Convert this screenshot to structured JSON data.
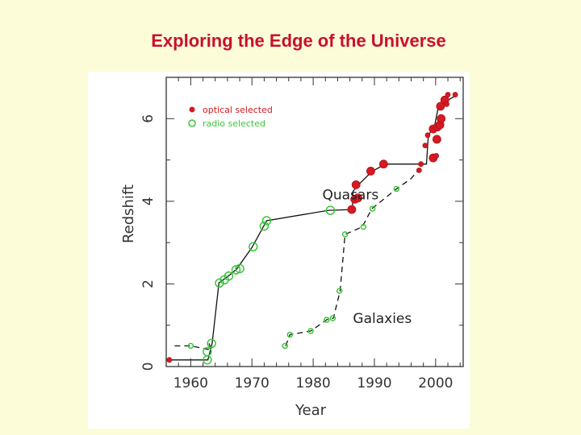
{
  "title": "Exploring the Edge of the Universe",
  "colors": {
    "title": "#c8102e",
    "background": "#fcfcd8",
    "optical": "#d51a22",
    "radio": "#3cc43c"
  },
  "chart_data": {
    "type": "scatter",
    "title": "",
    "xlabel": "Year",
    "ylabel": "Redshift",
    "xlim": [
      1956,
      2004.5
    ],
    "ylim": [
      0,
      7
    ],
    "x_ticks": [
      1960,
      1970,
      1980,
      1990,
      2000
    ],
    "x_tick_labels": [
      "1960",
      "1970",
      "1980",
      "1990",
      "2000"
    ],
    "y_ticks": [
      0,
      2,
      4,
      6
    ],
    "y_tick_labels": [
      "0",
      "2",
      "4",
      "6"
    ],
    "legend": {
      "position": "top-left",
      "entries": [
        {
          "label": "optical selected",
          "marker": "filled-circle",
          "color": "#d51a22"
        },
        {
          "label": "radio selected",
          "marker": "open-circle",
          "color": "#3cc43c"
        }
      ]
    },
    "annotations": [
      {
        "text": "Quasars",
        "x": 1981.5,
        "y": 4.05
      },
      {
        "text": "Galaxies",
        "x": 1986.5,
        "y": 1.05
      }
    ],
    "series": [
      {
        "name": "Quasars",
        "line_style": "solid",
        "line": [
          [
            1956,
            0.16
          ],
          [
            1962.8,
            0.16
          ],
          [
            1963.5,
            0.56
          ],
          [
            1964.6,
            2.02
          ],
          [
            1966.3,
            2.21
          ],
          [
            1967.5,
            2.36
          ],
          [
            1970,
            2.88
          ],
          [
            1972,
            3.42
          ],
          [
            1972.4,
            3.53
          ],
          [
            1982.5,
            3.78
          ],
          [
            1986.4,
            3.8
          ],
          [
            1986.5,
            4.24
          ],
          [
            1987.6,
            4.43
          ],
          [
            1989.6,
            4.72
          ],
          [
            1991.8,
            4.9
          ],
          [
            1998.5,
            4.9
          ],
          [
            1998.8,
            5.6
          ],
          [
            1999.8,
            5.8
          ],
          [
            2000.4,
            6.25
          ],
          [
            2001.7,
            6.42
          ],
          [
            2003.2,
            6.55
          ]
        ],
        "points": [
          {
            "x": 1956.5,
            "y": 0.16,
            "type": "optical",
            "size": "small"
          },
          {
            "x": 1962.7,
            "y": 0.16,
            "type": "radio",
            "size": "large"
          },
          {
            "x": 1962.7,
            "y": 0.36,
            "type": "radio",
            "size": "large"
          },
          {
            "x": 1963.4,
            "y": 0.56,
            "type": "radio",
            "size": "large"
          },
          {
            "x": 1964.7,
            "y": 2.02,
            "type": "radio",
            "size": "large"
          },
          {
            "x": 1965.5,
            "y": 2.1,
            "type": "radio",
            "size": "large"
          },
          {
            "x": 1966.2,
            "y": 2.19,
            "type": "radio",
            "size": "large"
          },
          {
            "x": 1967.4,
            "y": 2.34,
            "type": "radio",
            "size": "large"
          },
          {
            "x": 1968,
            "y": 2.37,
            "type": "radio",
            "size": "large"
          },
          {
            "x": 1970.2,
            "y": 2.9,
            "type": "radio",
            "size": "large"
          },
          {
            "x": 1972,
            "y": 3.4,
            "type": "radio",
            "size": "large"
          },
          {
            "x": 1972.4,
            "y": 3.53,
            "type": "radio",
            "size": "large"
          },
          {
            "x": 1982.8,
            "y": 3.78,
            "type": "radio",
            "size": "large"
          },
          {
            "x": 1986.3,
            "y": 3.8,
            "type": "optical",
            "size": "large"
          },
          {
            "x": 1986.8,
            "y": 4.05,
            "type": "optical",
            "size": "large"
          },
          {
            "x": 1987.3,
            "y": 4.08,
            "type": "optical",
            "size": "large"
          },
          {
            "x": 1987,
            "y": 4.4,
            "type": "optical",
            "size": "large"
          },
          {
            "x": 1989.4,
            "y": 4.73,
            "type": "optical",
            "size": "large"
          },
          {
            "x": 1991.5,
            "y": 4.9,
            "type": "optical",
            "size": "large"
          },
          {
            "x": 1997.3,
            "y": 4.75,
            "type": "optical",
            "size": "small"
          },
          {
            "x": 1997.6,
            "y": 4.9,
            "type": "optical",
            "size": "small"
          },
          {
            "x": 1998.3,
            "y": 5.35,
            "type": "optical",
            "size": "small"
          },
          {
            "x": 1998.7,
            "y": 5.6,
            "type": "optical",
            "size": "small"
          },
          {
            "x": 1999.6,
            "y": 5.05,
            "type": "optical",
            "size": "large"
          },
          {
            "x": 2000.1,
            "y": 5.1,
            "type": "optical",
            "size": "small"
          },
          {
            "x": 1999.6,
            "y": 5.75,
            "type": "optical",
            "size": "large"
          },
          {
            "x": 2000.2,
            "y": 5.5,
            "type": "optical",
            "size": "large"
          },
          {
            "x": 2000.3,
            "y": 5.8,
            "type": "optical",
            "size": "large"
          },
          {
            "x": 2000.7,
            "y": 5.85,
            "type": "optical",
            "size": "large"
          },
          {
            "x": 2000.9,
            "y": 6.0,
            "type": "optical",
            "size": "large"
          },
          {
            "x": 2000.8,
            "y": 6.3,
            "type": "optical",
            "size": "large"
          },
          {
            "x": 2001.5,
            "y": 6.45,
            "type": "optical",
            "size": "large"
          },
          {
            "x": 2001.8,
            "y": 6.35,
            "type": "optical",
            "size": "small"
          },
          {
            "x": 2002,
            "y": 6.58,
            "type": "optical",
            "size": "small"
          },
          {
            "x": 2003.2,
            "y": 6.58,
            "type": "optical",
            "size": "small"
          }
        ]
      },
      {
        "name": "Galaxies",
        "line_style": "dashed",
        "line": [
          [
            1963,
            0.56
          ],
          [
            1963.4,
            0.4
          ],
          [
            1960,
            0.5
          ],
          [
            1957.2,
            0.5
          ]
        ],
        "line2": [
          [
            1975.5,
            0.5
          ],
          [
            1976.2,
            0.77
          ],
          [
            1979.6,
            0.86
          ],
          [
            1982.3,
            1.14
          ],
          [
            1983.3,
            1.17
          ],
          [
            1984.4,
            1.83
          ],
          [
            1985.2,
            3.2
          ],
          [
            1988,
            3.38
          ],
          [
            1989.6,
            3.82
          ],
          [
            1993.6,
            4.3
          ],
          [
            1996,
            4.55
          ],
          [
            1997.2,
            4.76
          ]
        ],
        "points": [
          {
            "x": 1960,
            "y": 0.5,
            "type": "radio",
            "size": "small"
          },
          {
            "x": 1975.4,
            "y": 0.5,
            "type": "radio",
            "size": "small"
          },
          {
            "x": 1976.2,
            "y": 0.77,
            "type": "radio",
            "size": "small"
          },
          {
            "x": 1979.6,
            "y": 0.86,
            "type": "radio",
            "size": "small"
          },
          {
            "x": 1982.2,
            "y": 1.13,
            "type": "radio",
            "size": "small"
          },
          {
            "x": 1983.2,
            "y": 1.17,
            "type": "radio",
            "size": "small"
          },
          {
            "x": 1984.3,
            "y": 1.83,
            "type": "radio",
            "size": "small"
          },
          {
            "x": 1985.2,
            "y": 3.2,
            "type": "radio",
            "size": "small"
          },
          {
            "x": 1988.2,
            "y": 3.38,
            "type": "radio",
            "size": "small"
          },
          {
            "x": 1989.7,
            "y": 3.82,
            "type": "radio",
            "size": "small"
          },
          {
            "x": 1993.6,
            "y": 4.3,
            "type": "radio",
            "size": "small"
          }
        ]
      }
    ]
  }
}
